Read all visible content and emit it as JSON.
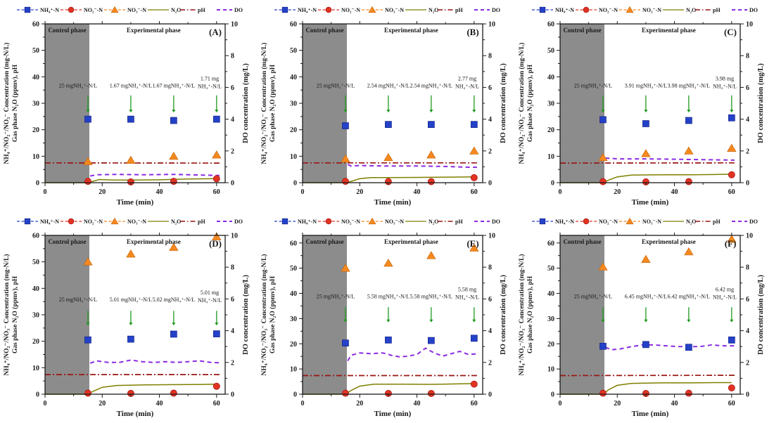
{
  "figure": {
    "background": "#ffffff",
    "colors": {
      "nh4": "#2442c8",
      "no2": "#e23322",
      "no3": "#f5891f",
      "n2o": "#7f7f00",
      "ph": "#991414",
      "do": "#8a2be2",
      "control_region": "#8c8c8c",
      "arrow": "#1f9a1f",
      "frame": "#1a1a1a"
    },
    "legend": [
      {
        "id": "nh4",
        "label": "NH₄⁺-N",
        "marker": "square",
        "line_style": "dash"
      },
      {
        "id": "no2",
        "label": "NO₂⁻-N",
        "marker": "circle",
        "line_style": "dash"
      },
      {
        "id": "no3",
        "label": "NO₃⁻-N",
        "marker": "triangle",
        "line_style": "dash"
      },
      {
        "id": "n2o",
        "label": "N₂O",
        "marker": "line",
        "line_style": "solid"
      },
      {
        "id": "ph",
        "label": "pH",
        "marker": "line",
        "line_style": "dashdot"
      },
      {
        "id": "do",
        "label": "DO",
        "marker": "line",
        "line_style": "dash"
      }
    ],
    "axes": {
      "y_left_title_outer": "NH₄⁺/NO₂⁻/NO₃⁻ Concentration (mg-N/L)",
      "y_left_title_inner": "Gas phase N₂O (ppmv), pH",
      "y_right_title": "DO concentration (mg/L)",
      "x_title": "Time (min)",
      "x_ticks": [
        0,
        20,
        40,
        60
      ],
      "x_minor_ticks": [
        10,
        30,
        50
      ],
      "y_left_ticks": [
        0,
        10,
        20,
        30,
        40,
        50,
        60
      ],
      "y_right_ticks": [
        0,
        2,
        4,
        6,
        8,
        10
      ],
      "x_range": [
        0,
        63
      ],
      "y_right_range": [
        0,
        10
      ]
    },
    "phase_labels": {
      "control": "Control phase",
      "experimental": "Experimental phase"
    },
    "control_phase_end_min": 15.5
  },
  "chart_data": [
    {
      "panel_label": "(A)",
      "type": "scatter",
      "y_left_max": 60,
      "x": [
        15,
        30,
        45,
        60
      ],
      "nh4": [
        24,
        24,
        23.5,
        24
      ],
      "no2": [
        0.5,
        0.3,
        0.5,
        1.5
      ],
      "no3": [
        8,
        8.5,
        10,
        10.5
      ],
      "n2o_line": [
        [
          0,
          0
        ],
        [
          15,
          0
        ],
        [
          16,
          0.3
        ],
        [
          19,
          1.2
        ],
        [
          24,
          1.0
        ],
        [
          30,
          1.0
        ],
        [
          40,
          1.1
        ],
        [
          50,
          1.4
        ],
        [
          60,
          1.5
        ]
      ],
      "ph_line": [
        [
          0,
          7.5
        ],
        [
          61,
          7.4
        ]
      ],
      "do_line": [
        [
          15.8,
          0.42
        ],
        [
          18,
          0.5
        ],
        [
          25,
          0.52
        ],
        [
          35,
          0.5
        ],
        [
          45,
          0.52
        ],
        [
          55,
          0.48
        ],
        [
          61,
          0.45
        ]
      ],
      "annotations": [
        {
          "x": 15,
          "lines": [
            "25 mgNH₄⁺-N/L"
          ]
        },
        {
          "x": 30,
          "lines": [
            "1.67 mgNH₄⁺-N/L"
          ]
        },
        {
          "x": 45,
          "lines": [
            "1.67 mgNH₄⁺-N/L"
          ]
        },
        {
          "x": 60,
          "lines": [
            "1.71 mg",
            "NH₄⁺-N/L"
          ]
        }
      ],
      "annotation_text_y": 36,
      "arrow_span": [
        33,
        26.5
      ]
    },
    {
      "panel_label": "(B)",
      "type": "scatter",
      "y_left_max": 60,
      "x": [
        15,
        30,
        45,
        60
      ],
      "nh4": [
        21.5,
        22,
        22,
        22
      ],
      "no2": [
        0.5,
        0.4,
        0.4,
        1.9
      ],
      "no3": [
        9,
        9.5,
        10.5,
        12
      ],
      "n2o_line": [
        [
          0,
          0
        ],
        [
          15,
          0
        ],
        [
          17,
          0.5
        ],
        [
          20,
          1.5
        ],
        [
          24,
          1.9
        ],
        [
          30,
          1.9
        ],
        [
          40,
          2.0
        ],
        [
          50,
          2.1
        ],
        [
          60,
          2.2
        ]
      ],
      "ph_line": [
        [
          0,
          7.5
        ],
        [
          61,
          7.5
        ]
      ],
      "do_line": [
        [
          15.8,
          1.15
        ],
        [
          17,
          1.05
        ],
        [
          20,
          1.08
        ],
        [
          30,
          1.05
        ],
        [
          40,
          1.05
        ],
        [
          50,
          1.02
        ],
        [
          57,
          0.98
        ],
        [
          61,
          0.97
        ]
      ],
      "annotations": [
        {
          "x": 15,
          "lines": [
            "25 mgNH₄⁺-N/L"
          ]
        },
        {
          "x": 30,
          "lines": [
            "2.54 mgNH₄⁺-N/L"
          ]
        },
        {
          "x": 45,
          "lines": [
            "2.54 mgNH₄⁺-N/L"
          ]
        },
        {
          "x": 60,
          "lines": [
            "2.77 mg",
            "NH₄⁺-N/L"
          ]
        }
      ],
      "annotation_text_y": 36,
      "arrow_span": [
        33,
        26.5
      ]
    },
    {
      "panel_label": "(C)",
      "type": "scatter",
      "y_left_max": 60,
      "x": [
        15,
        30,
        45,
        60
      ],
      "nh4": [
        23.8,
        22.3,
        23.5,
        24.5
      ],
      "no2": [
        0.4,
        0.3,
        0.4,
        3.0
      ],
      "no3": [
        9.5,
        11,
        12,
        13
      ],
      "n2o_line": [
        [
          0,
          0
        ],
        [
          15,
          0
        ],
        [
          17,
          1.0
        ],
        [
          20,
          2.2
        ],
        [
          25,
          2.9
        ],
        [
          35,
          3.0
        ],
        [
          45,
          3.0
        ],
        [
          55,
          3.1
        ],
        [
          60,
          3.2
        ]
      ],
      "ph_line": [
        [
          0,
          7.4
        ],
        [
          61,
          7.5
        ]
      ],
      "do_line": [
        [
          15.8,
          1.55
        ],
        [
          20,
          1.5
        ],
        [
          30,
          1.5
        ],
        [
          40,
          1.48
        ],
        [
          50,
          1.45
        ],
        [
          61,
          1.42
        ]
      ],
      "annotations": [
        {
          "x": 15,
          "lines": [
            "25 mgNH₄⁺-N/L"
          ]
        },
        {
          "x": 30,
          "lines": [
            "3.91 mgNH₄⁺-N/L"
          ]
        },
        {
          "x": 45,
          "lines": [
            "3.98 mgNH₄⁺-N/L"
          ]
        },
        {
          "x": 60,
          "lines": [
            "3.98 mg",
            "NH₄⁺-N/L"
          ]
        }
      ],
      "annotation_text_y": 36,
      "arrow_span": [
        33,
        26.5
      ]
    },
    {
      "panel_label": "(D)",
      "type": "scatter",
      "y_left_max": 60,
      "x": [
        15,
        30,
        45,
        60
      ],
      "nh4": [
        20.5,
        20.8,
        22.7,
        22.8
      ],
      "no2": [
        0.4,
        0.3,
        0.4,
        3.0
      ],
      "no3": [
        50,
        53,
        55.5,
        59.5
      ],
      "n2o_line": [
        [
          0,
          0
        ],
        [
          15,
          0
        ],
        [
          17,
          1.2
        ],
        [
          20,
          2.6
        ],
        [
          25,
          3.3
        ],
        [
          35,
          3.5
        ],
        [
          45,
          3.6
        ],
        [
          55,
          3.7
        ],
        [
          60,
          3.8
        ]
      ],
      "ph_line": [
        [
          0,
          7.4
        ],
        [
          61,
          7.4
        ]
      ],
      "do_line": [
        [
          15.8,
          1.95
        ],
        [
          18,
          2.1
        ],
        [
          22,
          2.0
        ],
        [
          26,
          2.0
        ],
        [
          30,
          2.15
        ],
        [
          34,
          2.05
        ],
        [
          38,
          2.0
        ],
        [
          42,
          2.05
        ],
        [
          46,
          2.0
        ],
        [
          50,
          2.05
        ],
        [
          54,
          2.1
        ],
        [
          58,
          2.0
        ],
        [
          61,
          1.98
        ]
      ],
      "annotations": [
        {
          "x": 15,
          "lines": [
            "25 mgNH₄⁺-N/L"
          ]
        },
        {
          "x": 30,
          "lines": [
            "5.01 mgNH₄⁺-N/L"
          ]
        },
        {
          "x": 45,
          "lines": [
            "5.02 mgNH₄⁺-N/L"
          ]
        },
        {
          "x": 60,
          "lines": [
            "5.01 mg",
            "NH₄⁺-N/L"
          ]
        }
      ],
      "annotation_text_y": 35,
      "arrow_span": [
        31.5,
        26
      ]
    },
    {
      "panel_label": "(E)",
      "type": "scatter",
      "y_left_max": 63,
      "x": [
        15,
        30,
        45,
        60
      ],
      "nh4": [
        20.3,
        21.5,
        21.3,
        22.2
      ],
      "no2": [
        0.4,
        0.3,
        0.3,
        4.0
      ],
      "no3": [
        50,
        52,
        55,
        58
      ],
      "n2o_line": [
        [
          0,
          0
        ],
        [
          15,
          0
        ],
        [
          17,
          1.5
        ],
        [
          20,
          3.2
        ],
        [
          25,
          4.0
        ],
        [
          35,
          4.0
        ],
        [
          45,
          3.9
        ],
        [
          55,
          4.1
        ],
        [
          60,
          4.2
        ]
      ],
      "ph_line": [
        [
          0,
          7.4
        ],
        [
          61,
          7.4
        ]
      ],
      "do_line": [
        [
          15.8,
          2.1
        ],
        [
          17,
          2.45
        ],
        [
          20,
          2.6
        ],
        [
          24,
          2.55
        ],
        [
          28,
          2.6
        ],
        [
          31,
          2.45
        ],
        [
          34,
          2.35
        ],
        [
          37,
          2.4
        ],
        [
          40,
          2.5
        ],
        [
          43,
          2.9
        ],
        [
          46,
          2.6
        ],
        [
          49,
          2.4
        ],
        [
          52,
          2.55
        ],
        [
          55,
          2.7
        ],
        [
          58,
          2.5
        ],
        [
          61,
          2.55
        ]
      ],
      "annotations": [
        {
          "x": 15,
          "lines": [
            "25 mgNH₄⁺-N/L"
          ]
        },
        {
          "x": 30,
          "lines": [
            "5.58 mgNH₄⁺-N/L"
          ]
        },
        {
          "x": 45,
          "lines": [
            "5.58 mgNH₄⁺-N/L"
          ]
        },
        {
          "x": 60,
          "lines": [
            "5.58 mg",
            "NH₄⁺-N/L"
          ]
        }
      ],
      "annotation_text_y": 38,
      "arrow_span": [
        34.5,
        28.5
      ]
    },
    {
      "panel_label": "(F)",
      "type": "scatter",
      "y_left_max": 63,
      "x": [
        15,
        30,
        45,
        60
      ],
      "nh4": [
        19,
        19.7,
        18.6,
        21.5
      ],
      "no2": [
        0.4,
        0.3,
        0.4,
        2.5
      ],
      "no3": [
        50.5,
        53.5,
        56.5,
        61.5
      ],
      "n2o_line": [
        [
          0,
          0
        ],
        [
          15,
          0
        ],
        [
          17,
          1.8
        ],
        [
          20,
          3.5
        ],
        [
          25,
          4.3
        ],
        [
          35,
          4.5
        ],
        [
          45,
          4.5
        ],
        [
          55,
          4.6
        ],
        [
          60,
          4.6
        ]
      ],
      "ph_line": [
        [
          0,
          7.4
        ],
        [
          61,
          7.5
        ]
      ],
      "do_line": [
        [
          15.8,
          2.95
        ],
        [
          18,
          2.8
        ],
        [
          21,
          2.85
        ],
        [
          25,
          3.0
        ],
        [
          29,
          3.1
        ],
        [
          33,
          3.1
        ],
        [
          37,
          3.05
        ],
        [
          41,
          3.0
        ],
        [
          45,
          3.0
        ],
        [
          49,
          3.0
        ],
        [
          53,
          3.1
        ],
        [
          57,
          3.05
        ],
        [
          61,
          3.05
        ]
      ],
      "annotations": [
        {
          "x": 15,
          "lines": [
            "25 mgNH₄⁺-N/L"
          ]
        },
        {
          "x": 30,
          "lines": [
            "6.45 mgNH₄⁺-N/L"
          ]
        },
        {
          "x": 45,
          "lines": [
            "6.42 mgNH₄⁺-N/L"
          ]
        },
        {
          "x": 60,
          "lines": [
            "6.42 mg",
            "NH₄⁺-N/L"
          ]
        }
      ],
      "annotation_text_y": 38,
      "arrow_span": [
        34.5,
        28.5
      ]
    }
  ]
}
